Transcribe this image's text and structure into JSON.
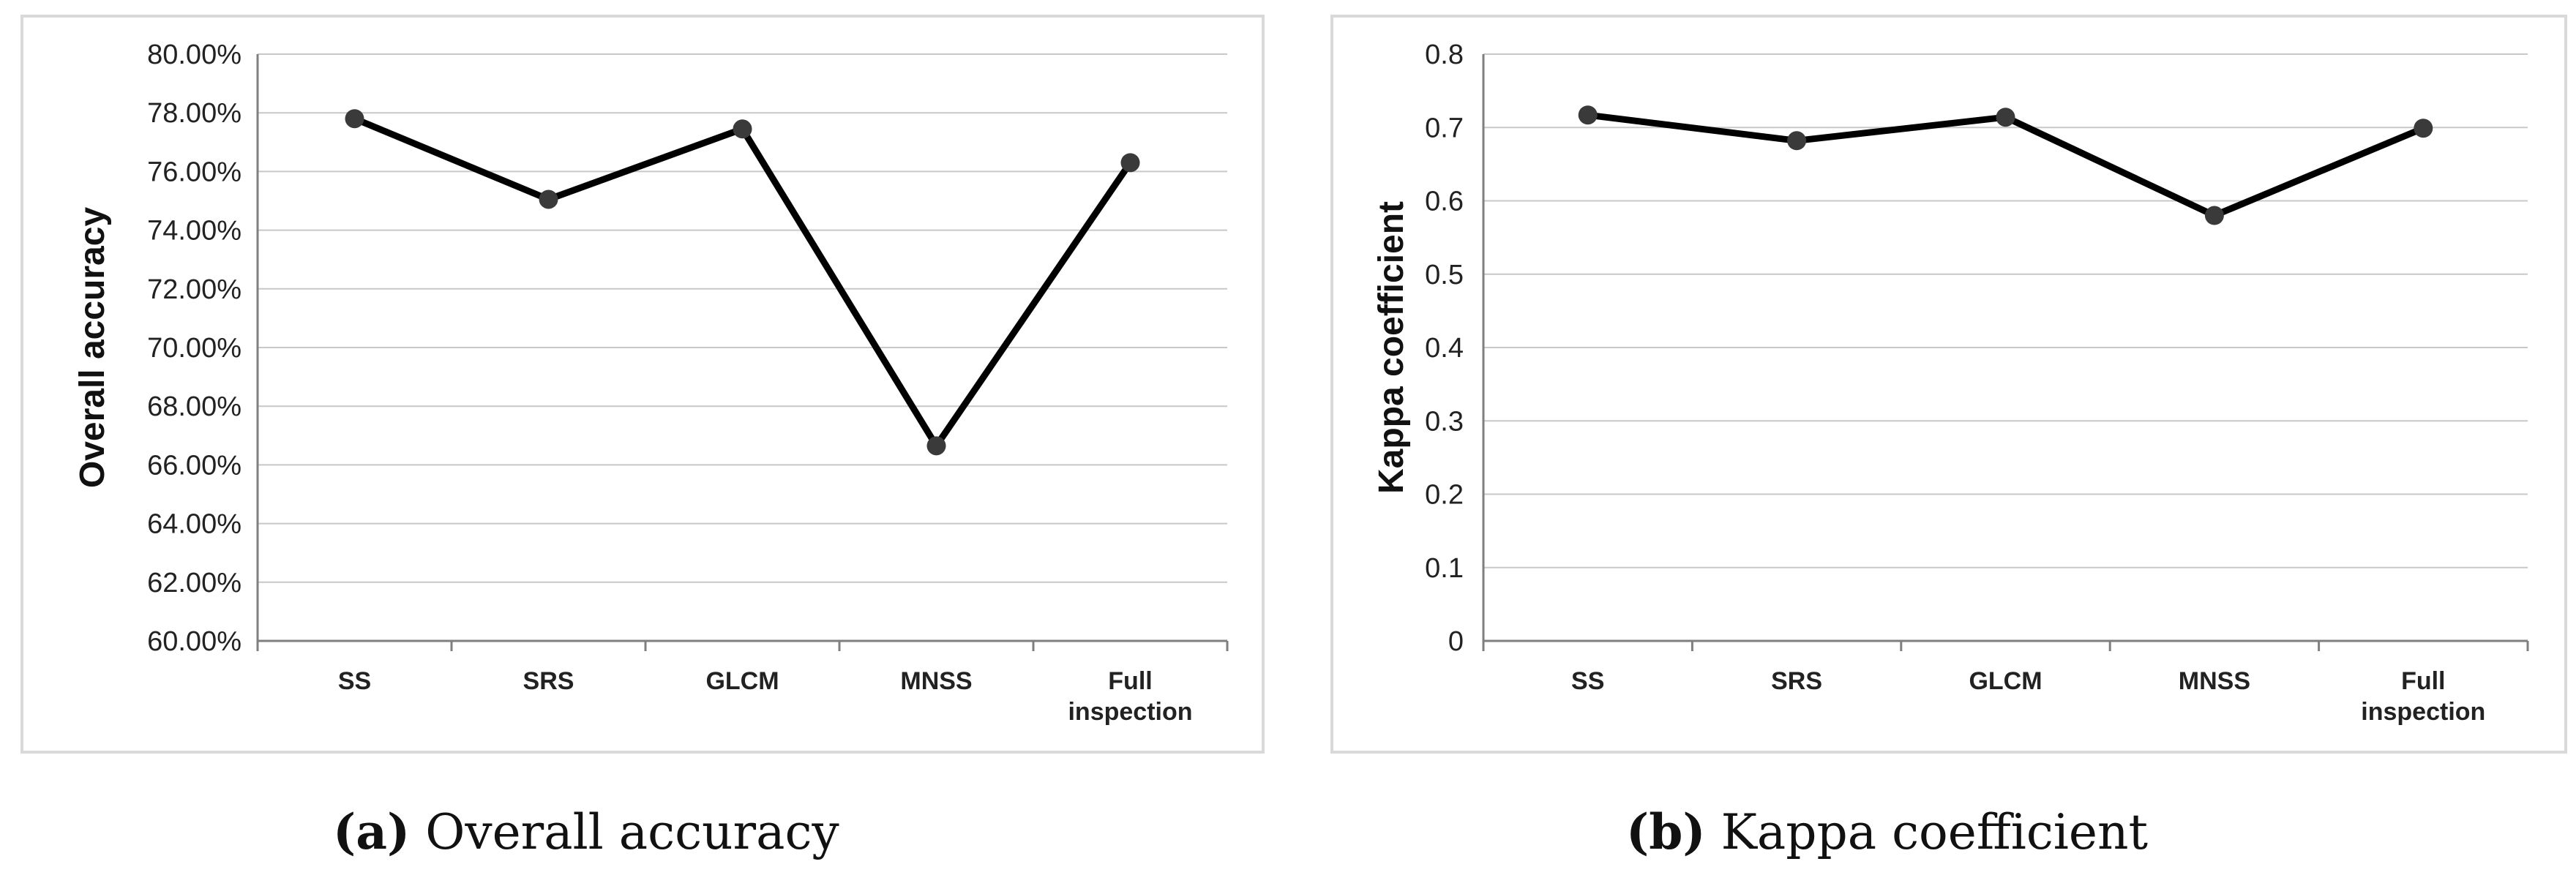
{
  "chart_data": [
    {
      "type": "line",
      "title": "",
      "xlabel": "",
      "ylabel": "Overall accuracy",
      "categories": [
        "SS",
        "SRS",
        "GLCM",
        "MNSS",
        "Full inspection"
      ],
      "series": [
        {
          "name": "Overall accuracy",
          "values": [
            77.8,
            75.05,
            77.45,
            66.65,
            76.3
          ]
        }
      ],
      "ylim": [
        60,
        80
      ],
      "yticks": [
        "60.00%",
        "62.00%",
        "64.00%",
        "66.00%",
        "68.00%",
        "70.00%",
        "72.00%",
        "74.00%",
        "76.00%",
        "78.00%",
        "80.00%"
      ],
      "ytick_values": [
        60,
        62,
        64,
        66,
        68,
        70,
        72,
        74,
        76,
        78,
        80
      ],
      "grid": true,
      "line_color": "#000000",
      "marker_color": "#3a3a3a"
    },
    {
      "type": "line",
      "title": "",
      "xlabel": "",
      "ylabel": "Kappa coefficient",
      "categories": [
        "SS",
        "SRS",
        "GLCM",
        "MNSS",
        "Full inspection"
      ],
      "series": [
        {
          "name": "Kappa coefficient",
          "values": [
            0.717,
            0.682,
            0.714,
            0.58,
            0.699
          ]
        }
      ],
      "ylim": [
        0,
        0.8
      ],
      "yticks": [
        "0",
        "0.1",
        "0.2",
        "0.3",
        "0.4",
        "0.5",
        "0.6",
        "0.7",
        "0.8"
      ],
      "ytick_values": [
        0,
        0.1,
        0.2,
        0.3,
        0.4,
        0.5,
        0.6,
        0.7,
        0.8
      ],
      "grid": true,
      "line_color": "#000000",
      "marker_color": "#3a3a3a"
    }
  ],
  "captions": [
    {
      "label": "(a)",
      "text": "Overall accuracy"
    },
    {
      "label": "(b)",
      "text": "Kappa coefficient"
    }
  ]
}
